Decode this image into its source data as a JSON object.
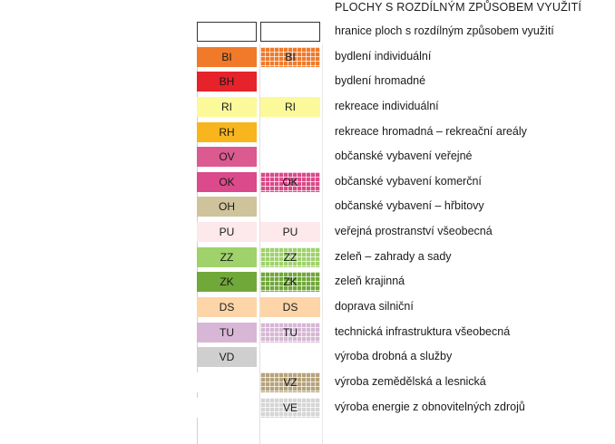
{
  "title": "PLOCHY S ROZDÍLNÝM ZPŮSOBEM VYUŽITÍ",
  "rows": [
    {
      "left": "",
      "right": "",
      "label": "hranice ploch s rozdílným způsobem využití",
      "left_color": "#ffffff",
      "right_color": "#ffffff",
      "right_pattern": "none",
      "outlined": true
    },
    {
      "left": "BI",
      "right": "BI",
      "label": "bydlení individuální",
      "left_color": "#f07a2a",
      "right_color": "#f07a2a",
      "right_pattern": "grid"
    },
    {
      "left": "BH",
      "right": "",
      "label": "bydlení hromadné",
      "left_color": "#e6222a",
      "right_color": "#ffffff",
      "right_pattern": "none"
    },
    {
      "left": "RI",
      "right": "RI",
      "label": "rekreace individuální",
      "left_color": "#fbf99a",
      "right_color": "#fbf99a",
      "right_pattern": "solid"
    },
    {
      "left": "RH",
      "right": "",
      "label": "rekreace hromadná – rekreační areály",
      "left_color": "#f8b51e",
      "right_color": "#ffffff",
      "right_pattern": "none"
    },
    {
      "left": "OV",
      "right": "",
      "label": "občanské vybavení veřejné",
      "left_color": "#db5a8f",
      "right_color": "#ffffff",
      "right_pattern": "none"
    },
    {
      "left": "OK",
      "right": "OK",
      "label": "občanské vybavení komerční",
      "left_color": "#db4a8a",
      "right_color": "#db4a8a",
      "right_pattern": "grid"
    },
    {
      "left": "OH",
      "right": "",
      "label": "občanské vybavení – hřbitovy",
      "left_color": "#cfc39b",
      "right_color": "#ffffff",
      "right_pattern": "none"
    },
    {
      "left": "PU",
      "right": "PU",
      "label": "veřejná prostranství všeobecná",
      "left_color": "#fde8ec",
      "right_color": "#fde8ec",
      "right_pattern": "solid"
    },
    {
      "left": "ZZ",
      "right": "ZZ",
      "label": "zeleň – zahrady a sady",
      "left_color": "#9fd26a",
      "right_color": "#9fd26a",
      "right_pattern": "grid"
    },
    {
      "left": "ZK",
      "right": "ZK",
      "label": "zeleň krajinná",
      "left_color": "#71a83a",
      "right_color": "#71a83a",
      "right_pattern": "grid"
    },
    {
      "left": "DS",
      "right": "DS",
      "label": "doprava silniční",
      "left_color": "#fdd5a8",
      "right_color": "#fdd5a8",
      "right_pattern": "solid"
    },
    {
      "left": "TU",
      "right": "TU",
      "label": "technická infrastruktura všeobecná",
      "left_color": "#d7b7d5",
      "right_color": "#d7b7d5",
      "right_pattern": "grid"
    },
    {
      "left": "VD",
      "right": "",
      "label": "výroba drobná a služby",
      "left_color": "#cfcfcf",
      "right_color": "#ffffff",
      "right_pattern": "none"
    },
    {
      "left": "",
      "right": "VZ",
      "label": "výroba zemědělská a lesnická",
      "left_color": "#ffffff",
      "right_color": "#b7a37b",
      "right_pattern": "grid"
    },
    {
      "left": "",
      "right": "VE",
      "label": "výroba energie z obnovitelných zdrojů",
      "left_color": "#ffffff",
      "right_color": "#d6d6d6",
      "right_pattern": "grid"
    }
  ]
}
